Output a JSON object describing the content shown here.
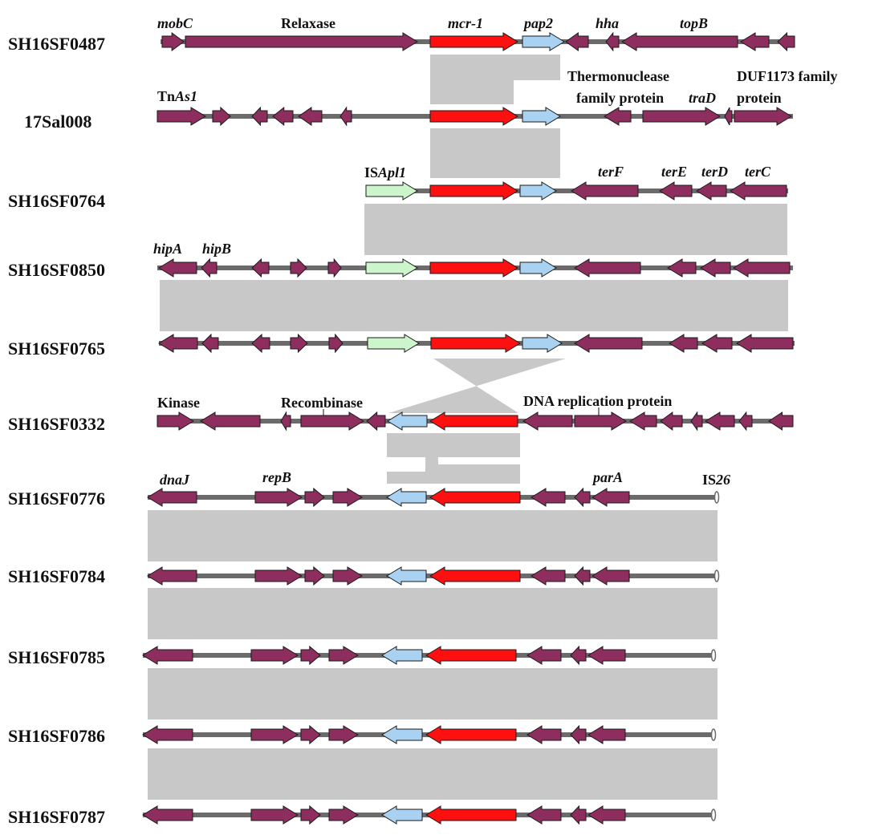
{
  "colors": {
    "background": "#ffffff",
    "backbone": "#6b6b6b",
    "default_gene": "#8e2e5e",
    "mcr1_gene": "#ff1010",
    "pap2_gene": "#a9d2f2",
    "isapl1_gene": "#ccf5cc",
    "homology_shading": "#c8c8c8",
    "gene_outline": "#1a1a1a"
  },
  "strains": [
    "SH16SF0487",
    "17Sal008",
    "SH16SF0764",
    "SH16SF0850",
    "SH16SF0765",
    "SH16SF0332",
    "SH16SF0776",
    "SH16SF0784",
    "SH16SF0785",
    "SH16SF0786",
    "SH16SF0787"
  ],
  "labels": {
    "mobC": "mobC",
    "relaxase": "Relaxase",
    "mcr1": "mcr-1",
    "pap2": "pap2",
    "hha": "hha",
    "topB": "topB",
    "tnas1_prefix": "Tn",
    "tnas1_italic": "As1",
    "thermonuclease_1": "Thermonuclease",
    "thermonuclease_2": "family protein",
    "traD": "traD",
    "duf_1": "DUF1173 family",
    "duf_2": "protein",
    "isapl1_prefix": "IS",
    "isapl1_italic": "Apl1",
    "terF": "terF",
    "terE": "terE",
    "terD": "terD",
    "terC": "terC",
    "hipA": "hipA",
    "hipB": "hipB",
    "kinase": "Kinase",
    "recombinase": "Recombinase",
    "dna_replication": "DNA replication protein",
    "dnaJ": "dnaJ",
    "repB": "repB",
    "parA": "parA",
    "is26_prefix": "IS",
    "is26_italic": "26"
  }
}
